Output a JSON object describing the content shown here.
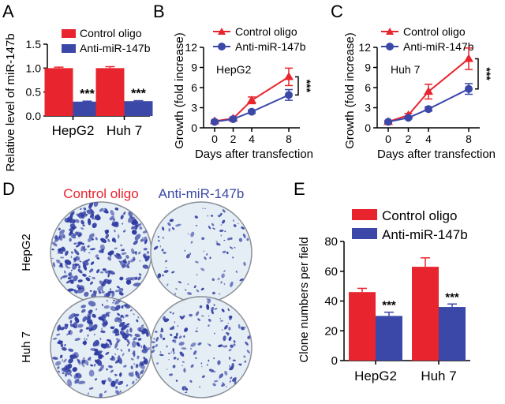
{
  "colors": {
    "control": "#e8252e",
    "anti": "#3b48a8",
    "axis": "#000000",
    "stain": "#2f3ca2",
    "plate_bg": "#e5eef4"
  },
  "chart_data": [
    {
      "id": "A",
      "panel_label": "A",
      "type": "bar",
      "categories": [
        "HepG2",
        "Huh 7"
      ],
      "series": [
        {
          "name": "Control oligo",
          "color_key": "control",
          "values": [
            1.0,
            1.0
          ],
          "errors": [
            0.02,
            0.03
          ]
        },
        {
          "name": "Anti-miR-147b",
          "color_key": "anti",
          "values": [
            0.3,
            0.31
          ],
          "errors": [
            0.01,
            0.01
          ]
        }
      ],
      "significance": [
        "***",
        "***"
      ],
      "ylabel": "Relative level of miR-147b",
      "ylim": [
        0,
        1.5
      ],
      "yticks": [
        "0.0",
        "0.5",
        "1.0",
        "1.5"
      ],
      "legend": "top"
    },
    {
      "id": "B",
      "panel_label": "B",
      "type": "line",
      "x": [
        0,
        2,
        4,
        8
      ],
      "xticks": [
        "0",
        "2",
        "4",
        "8"
      ],
      "series": [
        {
          "name": "Control oligo",
          "color_key": "control",
          "marker": "triangle",
          "values": [
            1.0,
            1.4,
            4.1,
            7.6
          ],
          "errors": [
            0.15,
            0.2,
            0.5,
            1.3
          ]
        },
        {
          "name": "Anti-miR-147b",
          "color_key": "anti",
          "marker": "circle",
          "values": [
            0.9,
            1.3,
            2.4,
            4.9
          ],
          "errors": [
            0.1,
            0.15,
            0.25,
            0.8
          ]
        }
      ],
      "annotation": "HepG2",
      "significance": "***",
      "xlabel": "Days after transfection",
      "ylabel": "Growth (fold increase)",
      "ylim": [
        0,
        12
      ],
      "yticks": [
        "0",
        "3",
        "6",
        "9",
        "12"
      ],
      "legend": "top-left"
    },
    {
      "id": "C",
      "panel_label": "C",
      "type": "line",
      "x": [
        0,
        2,
        4,
        8
      ],
      "xticks": [
        "0",
        "2",
        "4",
        "8"
      ],
      "series": [
        {
          "name": "Control oligo",
          "color_key": "control",
          "marker": "triangle",
          "values": [
            0.9,
            1.9,
            5.4,
            10.3
          ],
          "errors": [
            0.15,
            0.25,
            1.1,
            1.6
          ]
        },
        {
          "name": "Anti-miR-147b",
          "color_key": "anti",
          "marker": "circle",
          "values": [
            0.9,
            1.5,
            2.8,
            5.8
          ],
          "errors": [
            0.1,
            0.15,
            0.3,
            0.8
          ]
        }
      ],
      "annotation": "Huh 7",
      "significance": "***",
      "xlabel": "Days after transfection",
      "ylabel": "Growth (fold increase)",
      "ylim": [
        0,
        12
      ],
      "yticks": [
        "0",
        "3",
        "6",
        "9",
        "12"
      ],
      "legend": "top-left"
    },
    {
      "id": "E",
      "panel_label": "E",
      "type": "bar",
      "categories": [
        "HepG2",
        "Huh 7"
      ],
      "series": [
        {
          "name": "Control oligo",
          "color_key": "control",
          "values": [
            46,
            63
          ],
          "errors": [
            2.5,
            6
          ]
        },
        {
          "name": "Anti-miR-147b",
          "color_key": "anti",
          "values": [
            30,
            36
          ],
          "errors": [
            2.5,
            2
          ]
        }
      ],
      "significance": [
        "***",
        "***"
      ],
      "ylabel": "Clone numbers per field",
      "ylim": [
        0,
        80
      ],
      "yticks": [
        "0",
        "20",
        "40",
        "60",
        "80"
      ],
      "legend": "top"
    }
  ],
  "panel_d": {
    "label": "D",
    "columns": [
      "Control oligo",
      "Anti-miR-147b"
    ],
    "rows": [
      "HepG2",
      "Huh 7"
    ],
    "densities": [
      [
        1.0,
        0.35
      ],
      [
        1.0,
        0.55
      ]
    ]
  }
}
